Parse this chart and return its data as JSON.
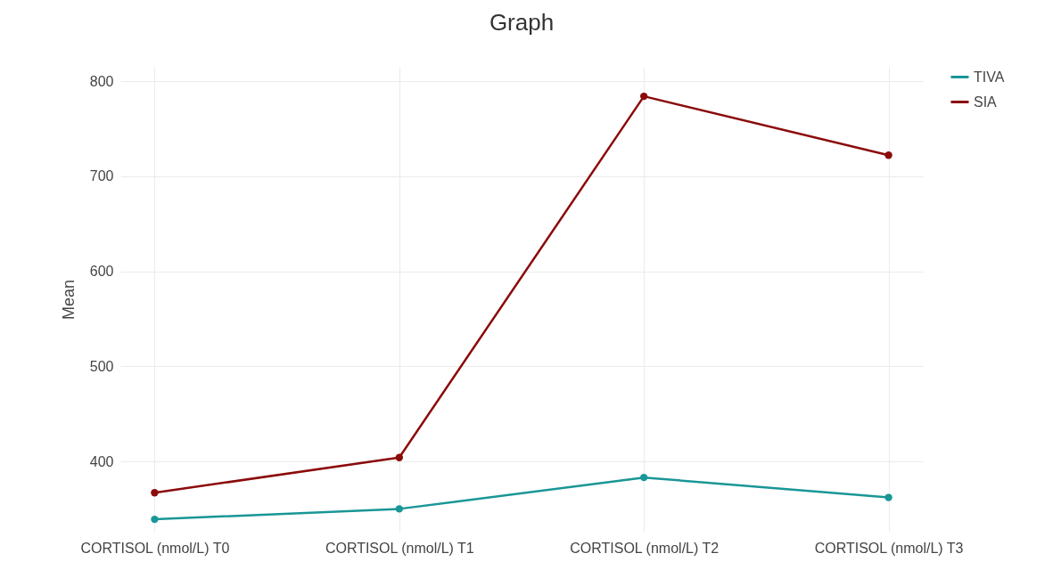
{
  "chart_data": {
    "type": "line",
    "title": "Graph",
    "ylabel": "Mean",
    "categories": [
      "CORTISOL (nmol/L) T0",
      "CORTISOL (nmol/L) T1",
      "CORTISOL (nmol/L) T2",
      "CORTISOL (nmol/L) T3"
    ],
    "series": [
      {
        "name": "TIVA",
        "color": "#1a9696",
        "values": [
          339,
          350,
          383,
          362
        ]
      },
      {
        "name": "SIA",
        "color": "#8b0a0a",
        "values": [
          367,
          404,
          784,
          722
        ]
      }
    ],
    "ylim": [
      326,
      815
    ],
    "yticks": [
      400,
      500,
      600,
      700,
      800
    ],
    "grid": true,
    "legend": "top right",
    "marker": "circle",
    "line_style": "solid"
  }
}
